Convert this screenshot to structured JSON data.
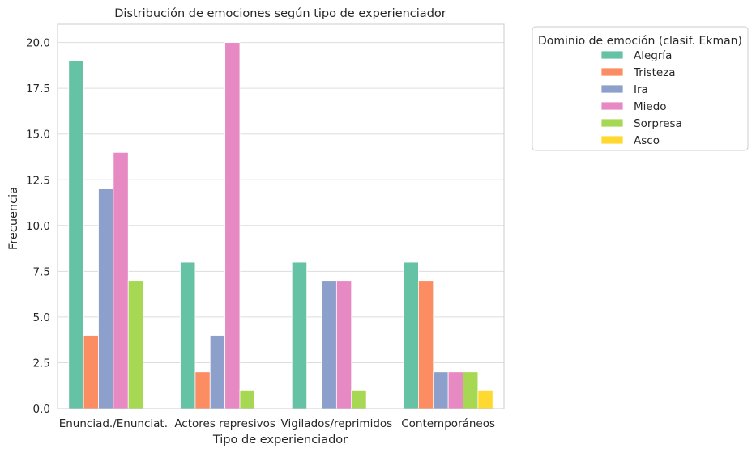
{
  "chart_data": {
    "type": "bar",
    "title": "Distribución de emociones según tipo de experienciador",
    "xlabel": "Tipo de experienciador",
    "ylabel": "Frecuencia",
    "categories": [
      "Enunciad./Enunciat.",
      "Actores represivos",
      "Vigilados/reprimidos",
      "Contemporáneos"
    ],
    "ylim": [
      0,
      21.0
    ],
    "yticks": [
      "0.0",
      "2.5",
      "5.0",
      "7.5",
      "10.0",
      "12.5",
      "15.0",
      "17.5",
      "20.0"
    ],
    "grid": true,
    "legend_title": "Dominio de emoción (clasif. Ekman)",
    "legend_position": "outside-top-right",
    "series": [
      {
        "name": "Alegría",
        "color": "#66c2a5",
        "values": [
          19,
          8,
          8,
          8
        ]
      },
      {
        "name": "Tristeza",
        "color": "#fc8d62",
        "values": [
          4,
          2,
          0,
          7
        ]
      },
      {
        "name": "Ira",
        "color": "#8da0cb",
        "values": [
          12,
          4,
          7,
          2
        ]
      },
      {
        "name": "Miedo",
        "color": "#e78ac3",
        "values": [
          14,
          20,
          7,
          2
        ]
      },
      {
        "name": "Sorpresa",
        "color": "#a6d854",
        "values": [
          7,
          1,
          1,
          2
        ]
      },
      {
        "name": "Asco",
        "color": "#ffd92f",
        "values": [
          0,
          0,
          0,
          1
        ]
      }
    ]
  }
}
